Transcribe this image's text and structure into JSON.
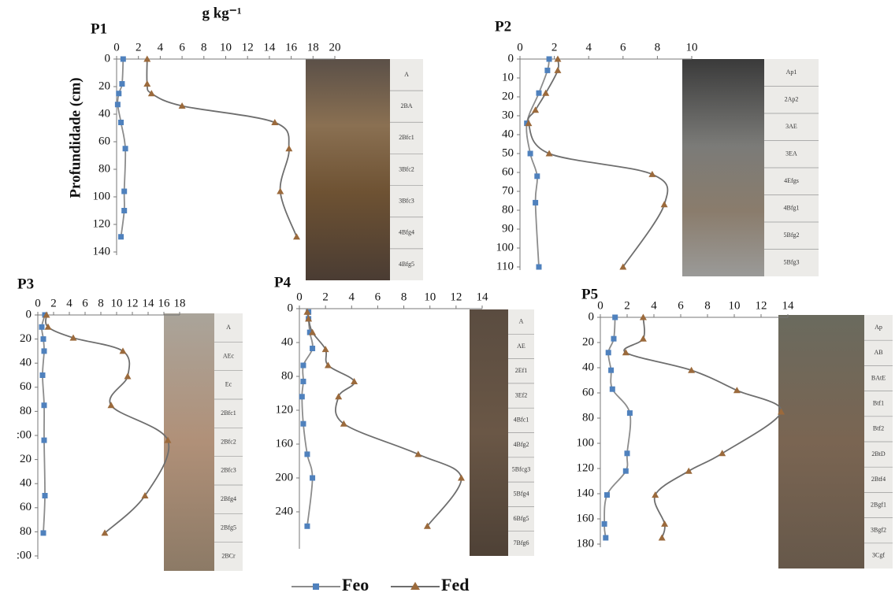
{
  "chart_data": [
    {
      "type": "line",
      "title": "P1",
      "x_label": "g kg⁻¹",
      "y_label": "Profundidade  (cm)",
      "xlim": [
        0,
        20
      ],
      "xticks": [
        0,
        2,
        4,
        6,
        8,
        10,
        12,
        14,
        16,
        18,
        20
      ],
      "ylim": [
        0,
        140
      ],
      "yticks": [
        0,
        20,
        40,
        60,
        80,
        100,
        120,
        140
      ],
      "series": [
        {
          "depths": [
            0,
            18,
            25,
            33,
            46,
            65,
            96,
            110,
            129
          ],
          "values": [
            0.6,
            0.5,
            0.2,
            0.1,
            0.4,
            0.8,
            0.7,
            0.7,
            0.4
          ]
        },
        {
          "depths": [
            0,
            18,
            25,
            34,
            46,
            65,
            96,
            129
          ],
          "values": [
            2.8,
            2.8,
            3.2,
            6.0,
            14.5,
            15.8,
            15.0,
            16.5
          ]
        }
      ],
      "horizons": [
        "A",
        "2BA",
        "2Bfc1",
        "3Bfc2",
        "3Bfc3",
        "4Bfg4",
        "4Bfg5"
      ]
    },
    {
      "type": "line",
      "title": "P2",
      "xlim": [
        0,
        10
      ],
      "xticks": [
        0,
        2,
        4,
        6,
        8,
        10
      ],
      "ylim": [
        0,
        110
      ],
      "yticks": [
        0,
        10,
        20,
        30,
        40,
        50,
        60,
        70,
        80,
        90,
        100,
        110
      ],
      "series": [
        {
          "depths": [
            0,
            6,
            18,
            34,
            50,
            62,
            76,
            110
          ],
          "values": [
            1.7,
            1.6,
            1.1,
            0.4,
            0.6,
            1.0,
            0.9,
            1.1
          ]
        },
        {
          "depths": [
            0,
            6,
            18,
            27,
            34,
            50,
            61,
            77,
            110
          ],
          "values": [
            2.2,
            2.2,
            1.5,
            0.9,
            0.5,
            1.7,
            7.7,
            8.4,
            6.0
          ]
        }
      ],
      "horizons": [
        "Ap1",
        "2Ap2",
        "3AE",
        "3EA",
        "4Efgs",
        "4Bfg1",
        "5Bfg2",
        "5Bfg3"
      ]
    },
    {
      "type": "line",
      "title": "P3",
      "xlim": [
        0,
        18
      ],
      "xticks": [
        0,
        2,
        4,
        6,
        8,
        10,
        12,
        14,
        16,
        18
      ],
      "ylim": [
        0,
        200
      ],
      "yticks": [
        0,
        20,
        40,
        60,
        80,
        {
          "value": 100,
          "label": ":00"
        },
        {
          "value": 120,
          "label": "20"
        },
        {
          "value": 140,
          "label": "40"
        },
        {
          "value": 160,
          "label": "60"
        },
        {
          "value": 180,
          "label": "80"
        },
        {
          "value": 200,
          "label": ":00"
        }
      ],
      "series": [
        {
          "depths": [
            0,
            10,
            20,
            30,
            50,
            75,
            104,
            150,
            181
          ],
          "values": [
            0.9,
            0.5,
            0.7,
            0.8,
            0.6,
            0.8,
            0.8,
            0.9,
            0.7
          ]
        },
        {
          "depths": [
            0,
            10,
            19,
            30,
            51,
            75,
            104,
            150,
            181
          ],
          "values": [
            1.1,
            1.3,
            4.5,
            10.8,
            11.4,
            9.3,
            16.5,
            13.6,
            8.5
          ]
        }
      ],
      "horizons": [
        "A",
        "AEc",
        "Ec",
        "2Bfc1",
        "2Bfc2",
        "2Bfc3",
        "2Bfg4",
        "2Bfg5",
        "2BCr"
      ]
    },
    {
      "type": "line",
      "title": "P4",
      "xlim": [
        0,
        14
      ],
      "xticks": [
        0,
        2,
        4,
        6,
        8,
        10,
        12,
        14
      ],
      "ylim": [
        0,
        280
      ],
      "yticks": [
        0,
        40,
        80,
        120,
        160,
        200,
        240
      ],
      "series": [
        {
          "depths": [
            4,
            12,
            28,
            47,
            67,
            86,
            104,
            136,
            172,
            200,
            257
          ],
          "values": [
            0.7,
            0.7,
            0.8,
            1.0,
            0.3,
            0.3,
            0.2,
            0.3,
            0.6,
            1.0,
            0.6
          ]
        },
        {
          "depths": [
            4,
            12,
            28,
            48,
            67,
            86,
            104,
            136,
            172,
            200,
            257
          ],
          "values": [
            0.6,
            0.7,
            1.0,
            2.0,
            2.2,
            4.2,
            3.0,
            3.4,
            9.1,
            12.4,
            9.8
          ]
        }
      ],
      "horizons": [
        "A",
        "AE",
        "2Ef1",
        "3Ef2",
        "4Bfc1",
        "4Bfg2",
        "5Bfcg3",
        "5Bfg4",
        "6Bfg5",
        "7Bfg6"
      ]
    },
    {
      "type": "line",
      "title": "P5",
      "xlim": [
        0,
        14
      ],
      "xticks": [
        0,
        2,
        4,
        6,
        8,
        10,
        12,
        14
      ],
      "ylim": [
        0,
        180
      ],
      "yticks": [
        0,
        20,
        40,
        60,
        80,
        100,
        120,
        140,
        160,
        180
      ],
      "series": [
        {
          "depths": [
            0,
            17,
            28,
            42,
            57,
            76,
            108,
            122,
            141,
            164,
            175
          ],
          "values": [
            1.1,
            1.0,
            0.6,
            0.8,
            0.9,
            2.2,
            2.0,
            1.9,
            0.5,
            0.3,
            0.4
          ]
        },
        {
          "depths": [
            0,
            17,
            28,
            42,
            58,
            75,
            108,
            122,
            141,
            164,
            175
          ],
          "values": [
            3.2,
            3.2,
            1.9,
            6.8,
            10.2,
            13.5,
            9.1,
            6.6,
            4.1,
            4.8,
            4.6
          ]
        }
      ],
      "horizons": [
        "Ap",
        "AB",
        "BAtE",
        "Btf1",
        "Btf2",
        "2BtD",
        "2Btf4",
        "2Bgf1",
        "3Bgf2",
        "3Cgf"
      ]
    }
  ],
  "legend": [
    {
      "name": "Feo",
      "color": "#4f81bd",
      "line_color": "#8c8c8c",
      "marker": "square"
    },
    {
      "name": "Fed",
      "color": "#9b6a3c",
      "line_color": "#6e6e6e",
      "marker": "triangle"
    }
  ]
}
